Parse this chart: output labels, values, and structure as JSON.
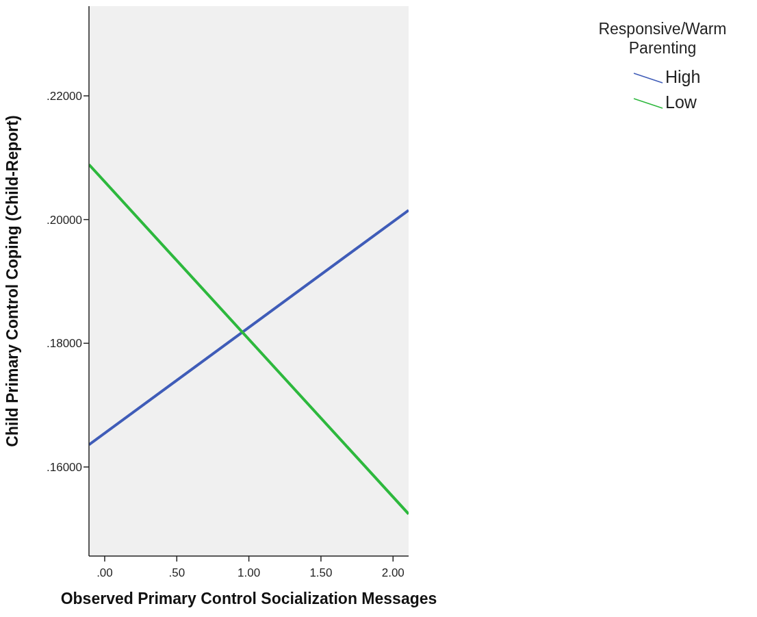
{
  "chart_data": {
    "type": "line",
    "xlabel": "Observed Primary Control Socialization Messages",
    "ylabel": "Child Primary Control Coping (Child-Report)",
    "legend_title": "Responsive/Warm Parenting",
    "legend": "top right",
    "marker": "none",
    "line_style": "solid",
    "x": [
      -0.109,
      2.108
    ],
    "series": [
      {
        "name": "High",
        "color": "#3f5cb8",
        "values": [
          0.1636,
          0.2015
        ]
      },
      {
        "name": "Low",
        "color": "#2db83d",
        "values": [
          0.2089,
          0.1524
        ]
      }
    ],
    "xlim": [
      -0.109,
      2.108
    ],
    "xticks": [
      {
        "value": 0,
        "label": ".00"
      },
      {
        "value": 0.5,
        "label": ".50"
      },
      {
        "value": 1,
        "label": "1.00"
      },
      {
        "value": 1.5,
        "label": "1.50"
      },
      {
        "value": 2,
        "label": "2.00"
      }
    ],
    "ylim": [
      0.1456,
      0.2345
    ],
    "yticks": [
      {
        "value": 0.16,
        "label": ".16000"
      },
      {
        "value": 0.18,
        "label": ".18000"
      },
      {
        "value": 0.2,
        "label": ".20000"
      },
      {
        "value": 0.22,
        "label": ".22000"
      }
    ]
  }
}
